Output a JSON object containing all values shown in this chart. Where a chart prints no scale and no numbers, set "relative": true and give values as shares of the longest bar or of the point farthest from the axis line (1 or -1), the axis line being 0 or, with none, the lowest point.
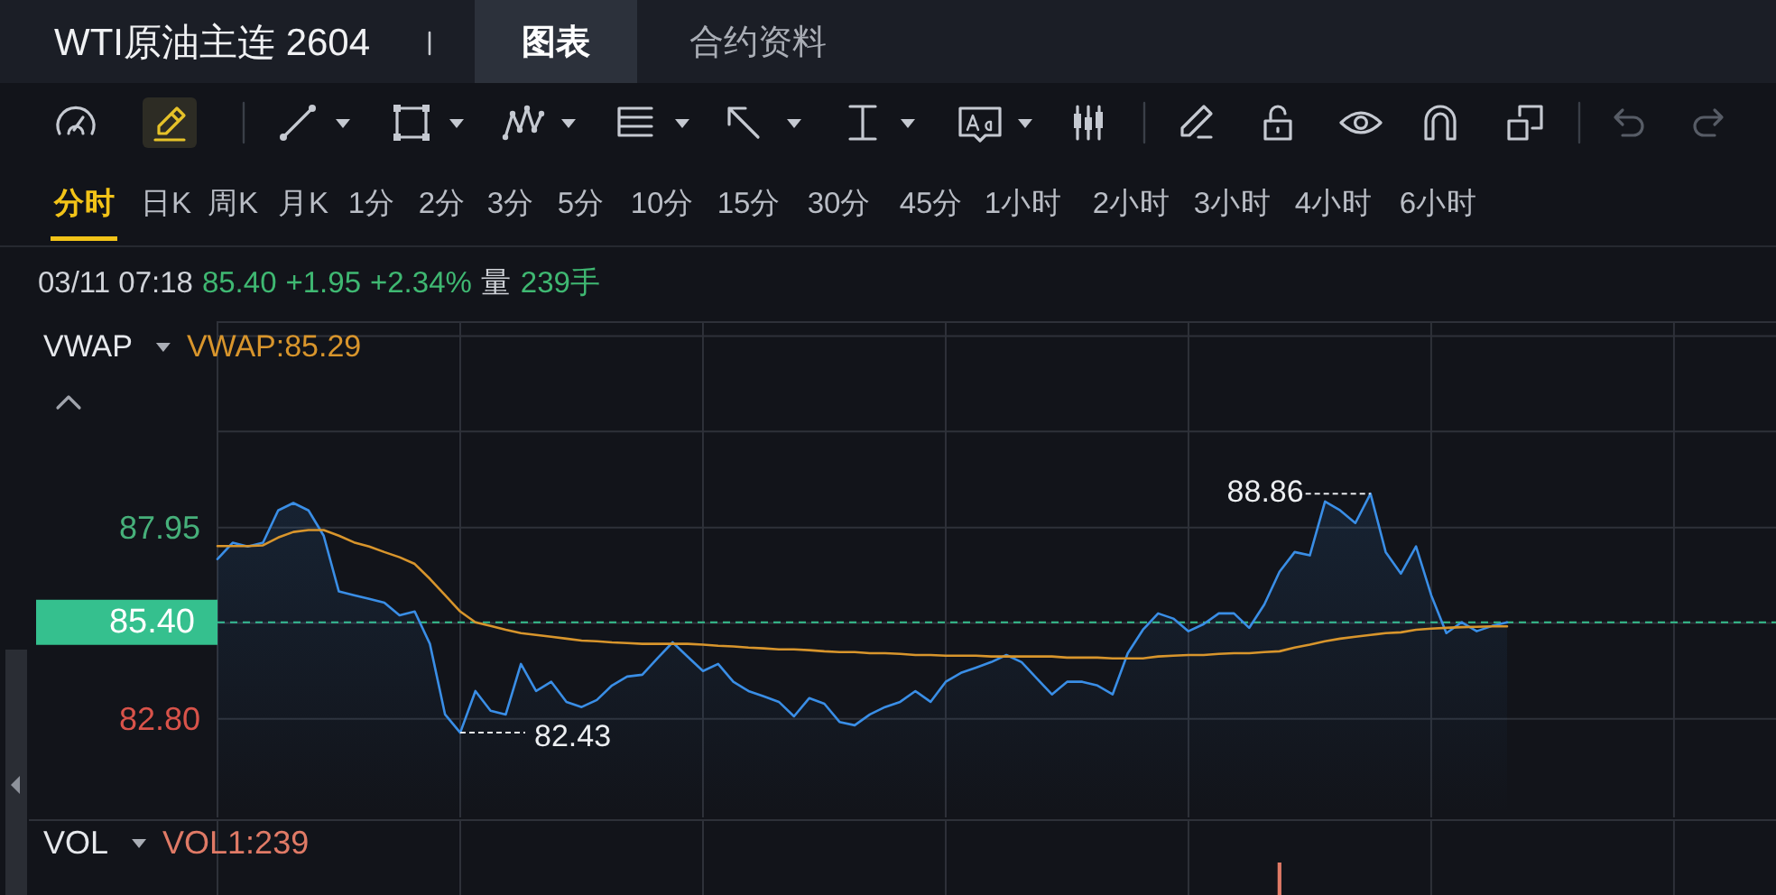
{
  "chart_data": [
    {
      "type": "area",
      "title": "WTI原油主连 2604",
      "categories": [
        null,
        null,
        null,
        null,
        null,
        null,
        null,
        null,
        null,
        null,
        null,
        null,
        null,
        null,
        null,
        null,
        null,
        null,
        null,
        null,
        null,
        null,
        null,
        null,
        null,
        null,
        null,
        null,
        null,
        null,
        null,
        null,
        null,
        null,
        null,
        null,
        null,
        null,
        null,
        null,
        null,
        null,
        null,
        null,
        null,
        null,
        null,
        null,
        null,
        null,
        null,
        null,
        null,
        null,
        null,
        null,
        null,
        null,
        null,
        null,
        null,
        null,
        null,
        null,
        null,
        null,
        null,
        null,
        null,
        null,
        null,
        null,
        null,
        null,
        null,
        null,
        null,
        null,
        null,
        null,
        null,
        null,
        null,
        null,
        null,
        null,
        null,
        null,
        null,
        null,
        null,
        null,
        null,
        null,
        null,
        null,
        null,
        null,
        null,
        null,
        null,
        null,
        null,
        null
      ],
      "series": [
        {
          "color": "#3a8ee6",
          "values": [
            87.1,
            87.54,
            87.44,
            87.54,
            88.41,
            88.61,
            88.41,
            87.73,
            86.23,
            86.13,
            86.03,
            85.93,
            85.59,
            85.69,
            84.82,
            82.92,
            82.43,
            83.55,
            83.02,
            82.92,
            84.28,
            83.55,
            83.8,
            83.26,
            83.12,
            83.31,
            83.7,
            83.94,
            83.99,
            84.43,
            84.86,
            84.47,
            84.09,
            84.28,
            83.8,
            83.55,
            83.41,
            83.26,
            82.87,
            83.36,
            83.21,
            82.72,
            82.63,
            82.92,
            83.12,
            83.26,
            83.55,
            83.26,
            83.8,
            84.04,
            84.18,
            84.33,
            84.52,
            84.33,
            83.89,
            83.46,
            83.8,
            83.8,
            83.7,
            83.46,
            84.57,
            85.2,
            85.64,
            85.5,
            85.16,
            85.35,
            85.64,
            85.64,
            85.25,
            85.88,
            86.76,
            87.29,
            87.2,
            88.65,
            88.41,
            88.07,
            88.86,
            87.29,
            86.71,
            87.44,
            86.13,
            85.11,
            85.4,
            85.16,
            85.3,
            85.4,
            null,
            null,
            null,
            null,
            null,
            null,
            null,
            null,
            null,
            null,
            null,
            null,
            null,
            null,
            null,
            null,
            null,
            null
          ]
        },
        {
          "type": "line",
          "name": "VWAP:85.29",
          "color": "#d8952c",
          "values": [
            87.45,
            87.45,
            87.45,
            87.47,
            87.68,
            87.83,
            87.88,
            87.88,
            87.73,
            87.55,
            87.44,
            87.29,
            87.15,
            86.97,
            86.57,
            86.13,
            85.69,
            85.4,
            85.3,
            85.2,
            85.11,
            85.06,
            85.01,
            84.96,
            84.91,
            84.89,
            84.86,
            84.84,
            84.82,
            84.82,
            84.82,
            84.82,
            84.8,
            84.77,
            84.75,
            84.72,
            84.7,
            84.67,
            84.67,
            84.65,
            84.62,
            84.6,
            84.6,
            84.57,
            84.57,
            84.55,
            84.52,
            84.52,
            84.5,
            84.5,
            84.5,
            84.48,
            84.48,
            84.48,
            84.48,
            84.48,
            84.45,
            84.45,
            84.45,
            84.43,
            84.43,
            84.43,
            84.48,
            84.5,
            84.52,
            84.52,
            84.55,
            84.57,
            84.57,
            84.6,
            84.62,
            84.72,
            84.8,
            84.89,
            84.96,
            85.01,
            85.06,
            85.11,
            85.13,
            85.2,
            85.23,
            85.25,
            85.27,
            85.28,
            85.29,
            85.29,
            null,
            null,
            null,
            null,
            null,
            null,
            null,
            null,
            null,
            null,
            null,
            null,
            null,
            null,
            null,
            null,
            null,
            null
          ]
        }
      ],
      "ylim": [
        80.2,
        93.5
      ],
      "yticks": [
        {
          "value": 82.8,
          "label": "82.80"
        },
        {
          "value": 85.38,
          "label": null
        },
        87.95,
        {
          "value": 90.53,
          "label": null
        },
        {
          "value": 93.1,
          "label": null
        }
      ],
      "tick_labels": "y",
      "grid": true,
      "legend": "top left",
      "ref_lines": [
        {
          "axis": "y",
          "value": 85.4,
          "label": "85.40",
          "color": "#35c08e",
          "line_style": "dashed"
        }
      ],
      "annotations": [
        "图表",
        "合约资料",
        "分时",
        "日K",
        "周K",
        "月K",
        "1分",
        "2分",
        "3分",
        "5分",
        "10分",
        "15分",
        "30分",
        "45分",
        "1小时",
        "2小时",
        "3小时",
        "4小时",
        "6小时",
        "03/11 07:18",
        "85.40",
        "+1.95",
        "+2.34%",
        "量",
        "239手",
        "VWAP",
        "88.86",
        "82.43"
      ]
    },
    {
      "type": "bar",
      "relative": true,
      "categories": [
        null,
        null,
        null,
        null,
        null,
        null,
        null,
        null,
        null,
        null,
        null,
        null,
        null,
        null,
        null,
        null,
        null,
        null,
        null,
        null,
        null,
        null,
        null,
        null,
        null,
        null,
        null,
        null,
        null,
        null,
        null,
        null,
        null,
        null,
        null,
        null,
        null,
        null,
        null,
        null,
        null,
        null,
        null,
        null,
        null,
        null,
        null,
        null,
        null,
        null,
        null,
        null,
        null,
        null,
        null,
        null,
        null,
        null,
        null,
        null,
        null,
        null,
        null,
        null,
        null,
        null,
        null,
        null,
        null,
        null,
        null,
        null,
        null,
        null,
        null,
        null,
        null,
        null,
        null,
        null,
        null,
        null,
        null,
        null,
        null,
        null,
        null,
        null,
        null,
        null,
        null,
        null,
        null,
        null,
        null,
        null,
        null,
        null,
        null,
        null,
        null,
        null,
        null,
        null
      ],
      "series": [
        {
          "name": "VOL1:239",
          "color": "#e07a66",
          "values": [
            null,
            null,
            null,
            null,
            null,
            null,
            null,
            null,
            null,
            null,
            null,
            null,
            null,
            null,
            null,
            null,
            null,
            null,
            null,
            null,
            null,
            null,
            null,
            null,
            null,
            null,
            null,
            null,
            null,
            null,
            null,
            null,
            null,
            null,
            null,
            null,
            null,
            null,
            null,
            null,
            null,
            null,
            null,
            null,
            null,
            null,
            null,
            null,
            null,
            null,
            null,
            null,
            null,
            null,
            null,
            null,
            null,
            null,
            null,
            null,
            null,
            null,
            null,
            null,
            null,
            null,
            null,
            null,
            null,
            null,
            1,
            null,
            null,
            null,
            null,
            null,
            null,
            null,
            null,
            null,
            null,
            null,
            null,
            null,
            null,
            null,
            null,
            null,
            null,
            null,
            null,
            null,
            null,
            null,
            null,
            null,
            null,
            null,
            null,
            null,
            null,
            null,
            null,
            null
          ]
        }
      ],
      "grid": "x",
      "legend": "top left",
      "annotations": [
        "VOL"
      ]
    }
  ]
}
